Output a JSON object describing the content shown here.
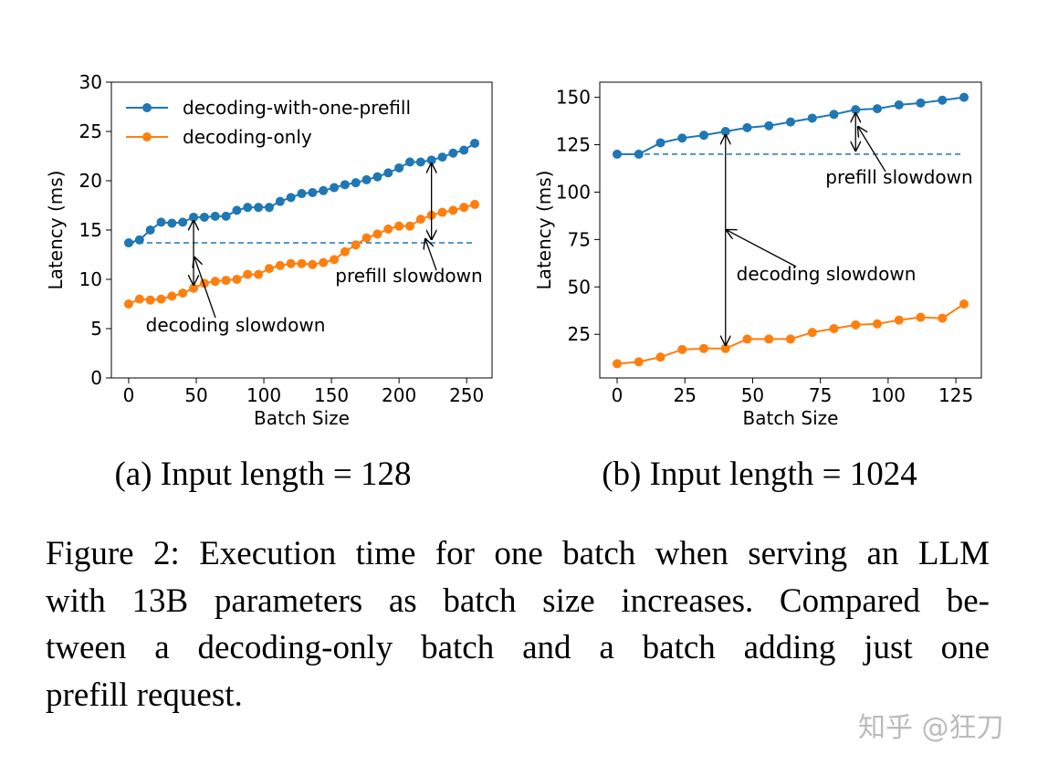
{
  "charts_page": true,
  "chart_data": [
    {
      "type": "line",
      "subcaption": "(a) Input length = 128",
      "xlabel": "Batch Size",
      "ylabel": "Latency (ms)",
      "x": [
        0,
        8,
        16,
        24,
        32,
        40,
        48,
        56,
        64,
        72,
        80,
        88,
        96,
        104,
        112,
        120,
        128,
        136,
        144,
        152,
        160,
        168,
        176,
        184,
        192,
        200,
        208,
        216,
        224,
        232,
        240,
        248,
        256
      ],
      "series": [
        {
          "name": "decoding-with-one-prefill",
          "color": "#1f77b4",
          "values": [
            13.7,
            14.0,
            15.0,
            15.8,
            15.7,
            15.8,
            16.3,
            16.3,
            16.4,
            16.4,
            17.0,
            17.3,
            17.3,
            17.3,
            17.9,
            18.3,
            18.7,
            18.8,
            19.0,
            19.3,
            19.6,
            19.8,
            20.1,
            20.4,
            20.8,
            21.3,
            21.9,
            21.9,
            22.1,
            22.4,
            22.8,
            23.1,
            23.8
          ]
        },
        {
          "name": "decoding-only",
          "color": "#ff7f0e",
          "values": [
            7.5,
            8.0,
            7.9,
            8.0,
            8.3,
            8.6,
            9.1,
            9.6,
            9.8,
            9.9,
            10.0,
            10.5,
            10.5,
            11.1,
            11.4,
            11.6,
            11.6,
            11.5,
            11.7,
            12.0,
            12.8,
            13.5,
            14.2,
            14.6,
            15.1,
            15.4,
            15.4,
            16.1,
            16.5,
            16.8,
            17.0,
            17.3,
            17.6
          ]
        }
      ],
      "xlim": [
        -12.8,
        268.8
      ],
      "ylim": [
        0,
        30
      ],
      "xticks": [
        0,
        50,
        100,
        150,
        200,
        250
      ],
      "yticks": [
        0,
        5,
        10,
        15,
        20,
        25,
        30
      ],
      "legend": "upper left",
      "annotations": [
        {
          "text": "decoding slowdown"
        },
        {
          "text": "prefill slowdown"
        }
      ]
    },
    {
      "type": "line",
      "subcaption": "(b) Input length = 1024",
      "xlabel": "Batch Size",
      "ylabel": "Latency (ms)",
      "x": [
        0,
        8,
        16,
        24,
        32,
        40,
        48,
        56,
        64,
        72,
        80,
        88,
        96,
        104,
        112,
        120,
        128
      ],
      "series": [
        {
          "name": "decoding-with-one-prefill",
          "color": "#1f77b4",
          "values": [
            120,
            120,
            126,
            128.5,
            130,
            132,
            134,
            135,
            137,
            139,
            141,
            143.5,
            144,
            146,
            147,
            148.5,
            150
          ]
        },
        {
          "name": "decoding-only",
          "color": "#ff7f0e",
          "values": [
            9.5,
            10.5,
            13,
            17,
            17.5,
            17.5,
            22.5,
            22.5,
            22.5,
            26,
            28,
            30,
            30.5,
            32.5,
            34,
            33.5,
            41
          ]
        }
      ],
      "xlim": [
        -6.4,
        134.4
      ],
      "ylim": [
        2,
        158
      ],
      "xticks": [
        0,
        25,
        50,
        75,
        100,
        125
      ],
      "yticks": [
        25,
        50,
        75,
        100,
        125,
        150
      ],
      "annotations": [
        {
          "text": "decoding slowdown"
        },
        {
          "text": "prefill slowdown"
        }
      ]
    }
  ],
  "caption": [
    "Figure 2: Execution time for one batch when serving an LLM",
    "with 13B parameters as batch size increases. Compared be-",
    "tween a decoding-only batch and a batch adding just one",
    "prefill request."
  ],
  "watermark": "知乎 @狂刀"
}
